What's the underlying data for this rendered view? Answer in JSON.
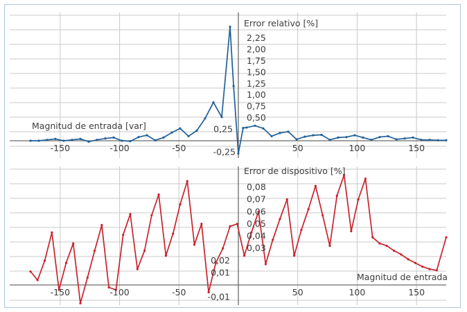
{
  "chart_data": [
    {
      "type": "line",
      "title": "",
      "ylabel": "Error relativo [%]",
      "xlabel": "Magnitud de entrada [var]",
      "xlim": [
        -175,
        175
      ],
      "ylim": [
        -0.3,
        2.55
      ],
      "grid": true,
      "color": "#1f5f97",
      "x_ticks": [
        -150,
        -100,
        -50,
        50,
        100,
        150
      ],
      "y_ticks": [
        2.25,
        2.0,
        1.75,
        1.5,
        1.25,
        1.0,
        0.75,
        0.5,
        0.25,
        -0.25
      ],
      "y_tick_labels": [
        "2,25",
        "2,00",
        "1,75",
        "1,50",
        "1,25",
        "1,00",
        "0,75",
        "0,50",
        "0,25",
        "-0,25"
      ],
      "series": [
        {
          "x": [
            -175,
            -168,
            -161,
            -154,
            -147,
            -140,
            -133,
            -126,
            -119,
            -112,
            -105,
            -98,
            -91,
            -84,
            -77,
            -70,
            -63,
            -56,
            -49,
            -42,
            -35,
            -28,
            -21,
            -14,
            -7,
            -4,
            0,
            4,
            7,
            14,
            21,
            28,
            35,
            42,
            49,
            56,
            63,
            70,
            77,
            84,
            91,
            98,
            105,
            112,
            119,
            126,
            133,
            140,
            147,
            154,
            161,
            168,
            175
          ],
          "y": [
            0.0,
            0.0,
            0.02,
            0.04,
            0.0,
            0.02,
            0.04,
            -0.02,
            0.02,
            0.05,
            0.07,
            0.0,
            -0.01,
            0.08,
            0.12,
            0.01,
            0.07,
            0.18,
            0.27,
            0.1,
            0.22,
            0.49,
            0.84,
            0.52,
            2.5,
            1.2,
            -0.28,
            0.28,
            0.29,
            0.33,
            0.27,
            0.1,
            0.17,
            0.2,
            0.03,
            0.09,
            0.12,
            0.13,
            0.02,
            0.07,
            0.08,
            0.12,
            0.07,
            0.02,
            0.08,
            0.1,
            0.03,
            0.05,
            0.07,
            0.02,
            0.02,
            0.01,
            0.01
          ]
        }
      ]
    },
    {
      "type": "line",
      "title": "",
      "ylabel": "Error de dispositivo [%]",
      "xlabel": "Magnitud de entrada",
      "xlim": [
        -175,
        175
      ],
      "ylim": [
        -0.016,
        0.096
      ],
      "grid": true,
      "color": "#c8222c",
      "x_ticks": [
        -150,
        -100,
        -50,
        50,
        100,
        150
      ],
      "y_ticks": [
        0.08,
        0.07,
        0.06,
        0.05,
        0.04,
        0.03,
        0.02,
        0.01,
        -0.01
      ],
      "y_tick_labels": [
        "0,08",
        "0,07",
        "0,06",
        "0,05",
        "0,04",
        "0,03",
        "0,02",
        "0,01",
        "-0,01"
      ],
      "series": [
        {
          "x": [
            -175,
            -169,
            -163,
            -157,
            -151,
            -145,
            -139,
            -133,
            -127,
            -121,
            -115,
            -109,
            -103,
            -97,
            -91,
            -85,
            -79,
            -73,
            -67,
            -61,
            -55,
            -49,
            -43,
            -37,
            -31,
            -25,
            -19,
            -13,
            -7,
            -1,
            5,
            11,
            17,
            23,
            29,
            35,
            41,
            47,
            53,
            59,
            65,
            71,
            77,
            83,
            89,
            95,
            101,
            107,
            113,
            119,
            125,
            131,
            137,
            143,
            149,
            155,
            161,
            167,
            175
          ],
          "y": [
            0.011,
            0.004,
            0.02,
            0.043,
            -0.004,
            0.018,
            0.034,
            -0.015,
            0.006,
            0.028,
            0.049,
            -0.002,
            -0.004,
            0.041,
            0.058,
            0.013,
            0.028,
            0.057,
            0.074,
            0.024,
            0.042,
            0.066,
            0.085,
            0.033,
            0.05,
            -0.006,
            0.018,
            0.03,
            0.048,
            0.05,
            0.024,
            0.043,
            0.06,
            0.017,
            0.037,
            0.054,
            0.07,
            0.024,
            0.045,
            0.062,
            0.081,
            0.057,
            0.032,
            0.073,
            0.09,
            0.044,
            0.07,
            0.087,
            0.039,
            0.034,
            0.032,
            0.028,
            0.025,
            0.021,
            0.018,
            0.015,
            0.013,
            0.012,
            0.039
          ]
        }
      ]
    }
  ]
}
